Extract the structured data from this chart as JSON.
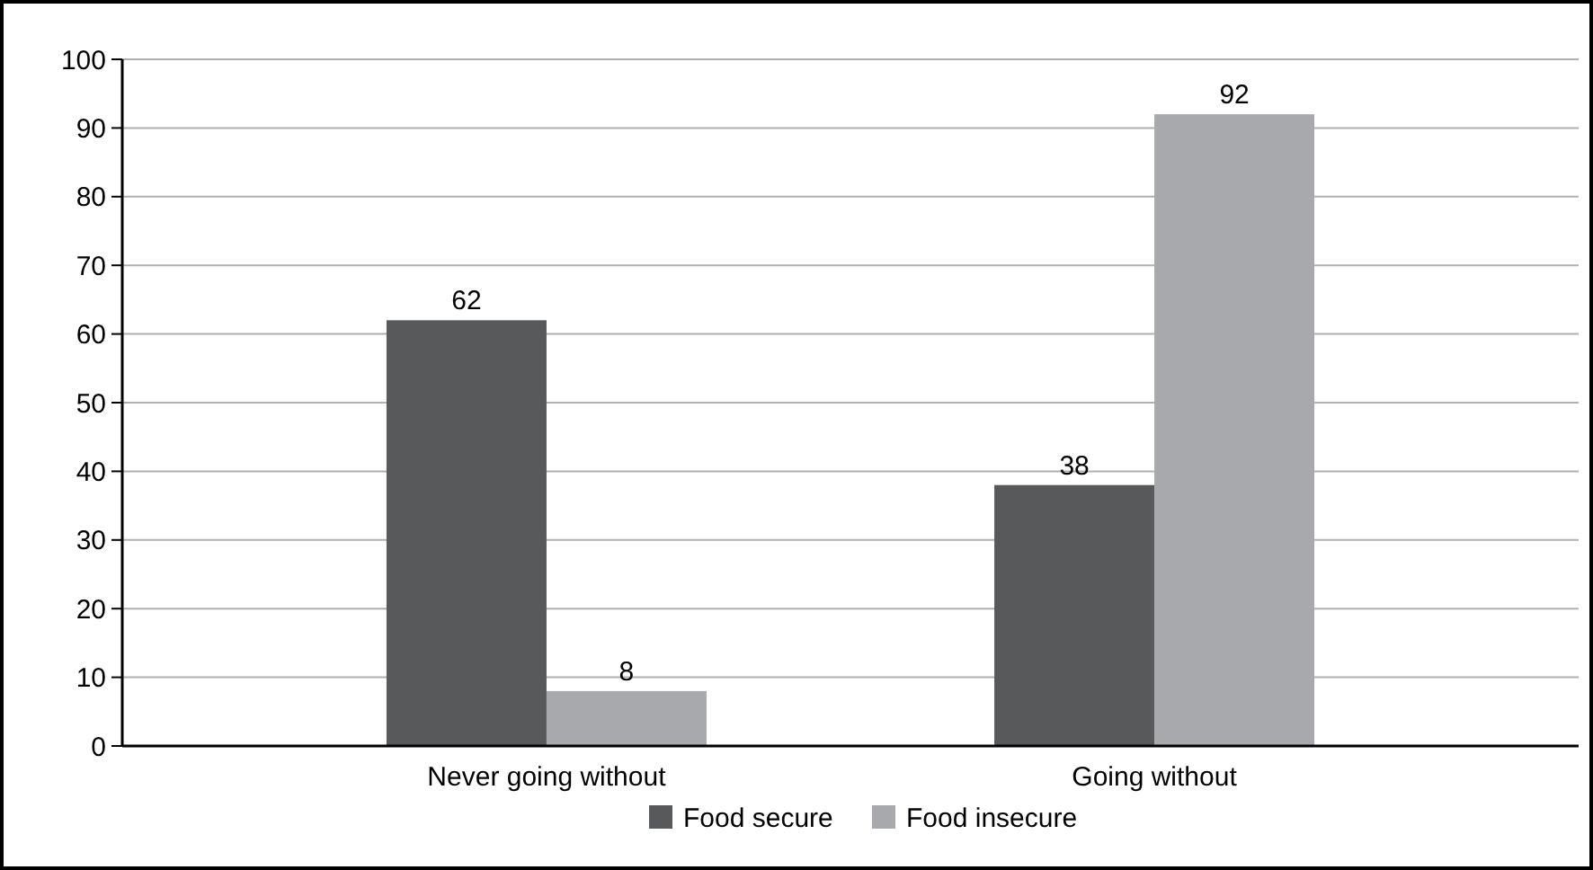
{
  "chart_data": {
    "type": "bar",
    "categories": [
      "Never going without",
      "Going without"
    ],
    "series": [
      {
        "name": "Food secure",
        "color": "#58595b",
        "values": [
          62,
          38
        ]
      },
      {
        "name": "Food insecure",
        "color": "#a7a9ac",
        "values": [
          8,
          92
        ]
      }
    ],
    "ylim": [
      0,
      100
    ],
    "yticks": [
      0,
      10,
      20,
      30,
      40,
      50,
      60,
      70,
      80,
      90,
      100
    ],
    "grid": "y",
    "legend": "bottom",
    "data_labels": true
  }
}
